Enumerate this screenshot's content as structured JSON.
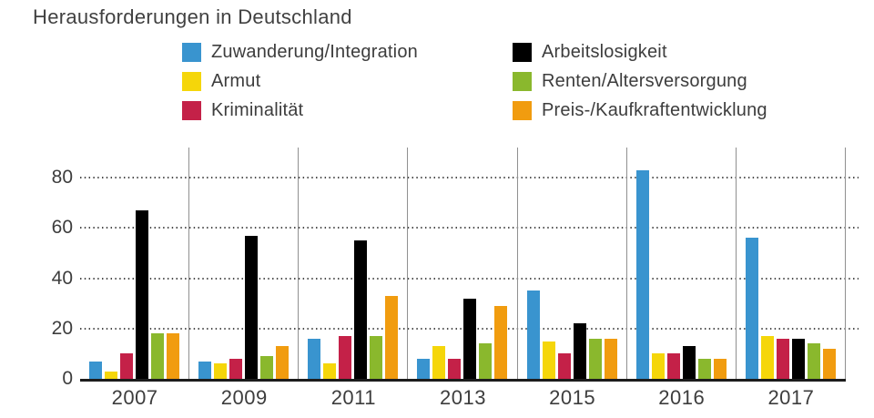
{
  "title": "Herausforderungen in Deutschland",
  "chart_data": {
    "type": "bar",
    "title": "Herausforderungen in Deutschland",
    "categories": [
      "2007",
      "2009",
      "2011",
      "2013",
      "2015",
      "2016",
      "2017"
    ],
    "series": [
      {
        "name": "Zuwanderung/Integration",
        "color": "#3994cf",
        "values": [
          7,
          7,
          16,
          8,
          35,
          83,
          56
        ]
      },
      {
        "name": "Armut",
        "color": "#f5d60a",
        "values": [
          3,
          6,
          6,
          13,
          15,
          10,
          17
        ]
      },
      {
        "name": "Kriminalität",
        "color": "#c42148",
        "values": [
          10,
          8,
          17,
          8,
          10,
          10,
          16
        ]
      },
      {
        "name": "Arbeitslosigkeit",
        "color": "#000000",
        "values": [
          67,
          57,
          55,
          32,
          22,
          13,
          16
        ]
      },
      {
        "name": "Renten/Altersversorgung",
        "color": "#8ab82d",
        "values": [
          18,
          9,
          17,
          14,
          16,
          8,
          14
        ]
      },
      {
        "name": "Preis-/Kaufkraftentwicklung",
        "color": "#f19c0f",
        "values": [
          18,
          13,
          33,
          29,
          16,
          8,
          12
        ]
      }
    ],
    "xlabel": "",
    "ylabel": "",
    "yticks": [
      0,
      20,
      40,
      60,
      80
    ],
    "ylim": [
      0,
      92
    ],
    "grid": "dotted-horizontal",
    "group_separators": "vertical-gray-lines",
    "legend": {
      "position": "top",
      "columns": [
        [
          "Zuwanderung/Integration",
          "Armut",
          "Kriminalität"
        ],
        [
          "Arbeitslosigkeit",
          "Renten/Altersversorgung",
          "Preis-/Kaufkraftentwicklung"
        ]
      ]
    }
  }
}
